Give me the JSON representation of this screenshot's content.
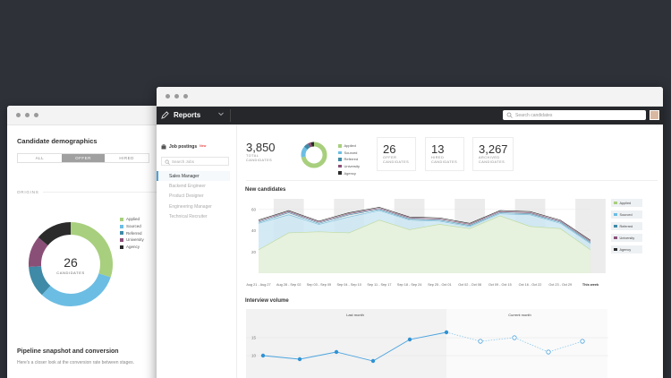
{
  "back": {
    "title": "Candidate demographics",
    "filters": [
      "ALL",
      "OFFER",
      "HIRED"
    ],
    "active_filter": 1,
    "origins_label": "ORIGINS",
    "donut_number": "26",
    "donut_caption": "CANDIDATES",
    "legend": [
      {
        "label": "Applied",
        "color": "#a8cf7d"
      },
      {
        "label": "Sourced",
        "color": "#6cbde3"
      },
      {
        "label": "Referred",
        "color": "#3f8aa6"
      },
      {
        "label": "University",
        "color": "#8a4f77"
      },
      {
        "label": "Agency",
        "color": "#2b2b2b"
      }
    ],
    "segments": [
      0.3,
      0.32,
      0.12,
      0.12,
      0.14
    ],
    "pipeline_title": "Pipeline snapshot and conversion",
    "pipeline_sub": "Here's a closer look at the conversion rate between stages."
  },
  "front": {
    "app_title": "Reports",
    "search_placeholder": "Search candidates",
    "sidebar": {
      "title": "Job postings",
      "badge": "New",
      "search_placeholder": "Search Jobs",
      "items": [
        "Sales Manager",
        "Backend Engineer",
        "Product Designer",
        "Engineering Manager",
        "Technical Recruiter"
      ],
      "selected": 0
    },
    "total": {
      "value": "3,850",
      "label1": "TOTAL",
      "label2": "CANDIDATES"
    },
    "small_segments": [
      0.72,
      0.14,
      0.06,
      0.04,
      0.04
    ],
    "legend": [
      "Applied",
      "Sourced",
      "Referred",
      "University",
      "Agency"
    ],
    "cards": [
      {
        "value": "26",
        "label1": "OFFER",
        "label2": "CANDIDATES"
      },
      {
        "value": "13",
        "label1": "HIRED",
        "label2": "CANDIDATES"
      },
      {
        "value": "3,267",
        "label1": "ARCHIVED",
        "label2": "CANDIDATES"
      }
    ],
    "new_candidates_title": "New candidates",
    "interview_title": "Interview volume",
    "last_month": "Last month",
    "current_month": "Current month"
  },
  "chart_data": [
    {
      "type": "area",
      "title": "New candidates",
      "categories": [
        "Aug 21 - Aug 27",
        "Aug 28 - Sep 02",
        "Sep 03 - Sep 09",
        "Sep 04 - Sep 10",
        "Sep 11 - Sep 17",
        "Sep 18 - Sep 24",
        "Sep 25 - Oct 01",
        "Oct 02 - Oct 08",
        "Oct 09 - Oct 15",
        "Oct 16 - Oct 22",
        "Oct 23 - Oct 29",
        "This week"
      ],
      "ylim": [
        0,
        70
      ],
      "yticks": [
        20,
        40,
        60
      ],
      "series": [
        {
          "name": "Applied",
          "values": [
            22,
            38,
            39,
            38,
            50,
            41,
            46,
            42,
            54,
            44,
            42,
            22
          ],
          "color": "#e8f2dc"
        },
        {
          "name": "Sourced",
          "values": [
            47,
            55,
            46,
            53,
            59,
            50,
            49,
            44,
            56,
            55,
            47,
            28
          ],
          "color": "#cde7f3"
        },
        {
          "name": "Referred",
          "values": [
            48,
            57,
            47,
            55,
            60,
            51,
            50,
            45,
            57,
            56,
            48,
            29
          ],
          "color": "#3f8aa6"
        },
        {
          "name": "University",
          "values": [
            49,
            58,
            48,
            56,
            61,
            52,
            51,
            46,
            58,
            57,
            49,
            30
          ],
          "color": "#8a4f77"
        },
        {
          "name": "Agency",
          "values": [
            50,
            59,
            49,
            57,
            62,
            53,
            52,
            47,
            59,
            58,
            50,
            31
          ],
          "color": "#2b2b2b"
        }
      ]
    },
    {
      "type": "line",
      "title": "Interview volume",
      "yticks": [
        10,
        15
      ],
      "ylim": [
        5,
        20
      ],
      "series": [
        {
          "name": "Last month",
          "values": [
            10,
            9,
            11,
            8.5,
            14.5,
            16.5
          ]
        },
        {
          "name": "Current month",
          "values": [
            16.5,
            14,
            15,
            11,
            14
          ]
        }
      ]
    }
  ]
}
